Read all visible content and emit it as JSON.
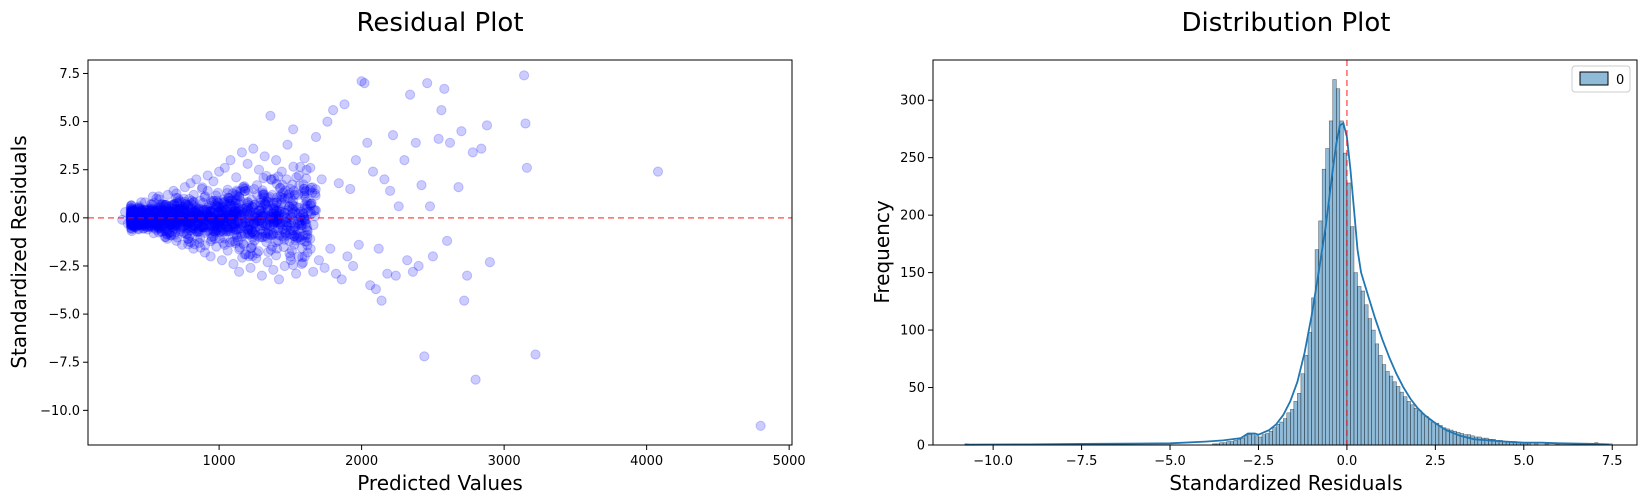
{
  "chart_data": [
    {
      "type": "scatter",
      "title": "Residual Plot",
      "xlabel": "Predicted Values",
      "ylabel": "Standardized Residuals",
      "xlim": [
        80,
        5020
      ],
      "ylim": [
        -11.8,
        8.2
      ],
      "xticks": [
        1000,
        2000,
        3000,
        4000,
        5000
      ],
      "yticks": [
        -10.0,
        -7.5,
        -5.0,
        -2.5,
        0.0,
        2.5,
        5.0,
        7.5
      ],
      "xtick_labels": [
        "1000",
        "2000",
        "3000",
        "4000",
        "5000"
      ],
      "ytick_labels": [
        "−10.0",
        "−7.5",
        "−5.0",
        "−2.5",
        "0.0",
        "2.5",
        "5.0",
        "7.5"
      ],
      "point_color": "#0000ff",
      "point_alpha": 0.2,
      "reference_line": {
        "y": 0,
        "color": "#ff0000",
        "style": "dashed"
      },
      "points": [
        [
          320,
          -0.1
        ],
        [
          340,
          0.3
        ],
        [
          360,
          -0.3
        ],
        [
          380,
          0.5
        ],
        [
          400,
          0.2
        ],
        [
          420,
          -0.4
        ],
        [
          440,
          0.6
        ],
        [
          460,
          -0.2
        ],
        [
          480,
          0.8
        ],
        [
          500,
          -0.6
        ],
        [
          520,
          0.4
        ],
        [
          540,
          -0.8
        ],
        [
          560,
          1.0
        ],
        [
          580,
          -0.5
        ],
        [
          600,
          0.7
        ],
        [
          620,
          -1.0
        ],
        [
          640,
          1.2
        ],
        [
          660,
          -0.9
        ],
        [
          680,
          1.4
        ],
        [
          700,
          -1.2
        ],
        [
          720,
          0.9
        ],
        [
          740,
          -1.4
        ],
        [
          760,
          1.6
        ],
        [
          780,
          -1.1
        ],
        [
          800,
          1.8
        ],
        [
          820,
          -1.6
        ],
        [
          840,
          2.0
        ],
        [
          860,
          -1.3
        ],
        [
          880,
          1.5
        ],
        [
          900,
          -1.8
        ],
        [
          920,
          2.2
        ],
        [
          940,
          -2.0
        ],
        [
          960,
          1.9
        ],
        [
          980,
          -1.5
        ],
        [
          1000,
          2.4
        ],
        [
          1020,
          -2.2
        ],
        [
          1040,
          2.6
        ],
        [
          1060,
          -1.7
        ],
        [
          1080,
          3.0
        ],
        [
          1100,
          -2.4
        ],
        [
          1120,
          2.1
        ],
        [
          1140,
          -2.8
        ],
        [
          1160,
          3.4
        ],
        [
          1180,
          -1.9
        ],
        [
          1200,
          2.8
        ],
        [
          1220,
          -2.6
        ],
        [
          1240,
          3.6
        ],
        [
          1260,
          -2.1
        ],
        [
          1280,
          2.5
        ],
        [
          1300,
          -3.0
        ],
        [
          1320,
          3.2
        ],
        [
          1340,
          -2.3
        ],
        [
          1360,
          5.3
        ],
        [
          1380,
          -2.7
        ],
        [
          1400,
          3.0
        ],
        [
          1420,
          -3.2
        ],
        [
          1440,
          2.4
        ],
        [
          1460,
          -2.5
        ],
        [
          1480,
          3.8
        ],
        [
          1500,
          -2.0
        ],
        [
          1520,
          4.6
        ],
        [
          1540,
          -2.9
        ],
        [
          1560,
          2.2
        ],
        [
          1580,
          -2.4
        ],
        [
          1600,
          3.1
        ],
        [
          1620,
          -1.8
        ],
        [
          1640,
          2.6
        ],
        [
          1660,
          -2.8
        ],
        [
          1680,
          4.2
        ],
        [
          1700,
          -2.2
        ],
        [
          1720,
          2.0
        ],
        [
          1740,
          -2.6
        ],
        [
          1760,
          5.0
        ],
        [
          1780,
          -1.6
        ],
        [
          1800,
          5.6
        ],
        [
          1820,
          -2.9
        ],
        [
          1840,
          1.8
        ],
        [
          1860,
          -3.2
        ],
        [
          1880,
          5.9
        ],
        [
          1900,
          -2.0
        ],
        [
          1920,
          1.5
        ],
        [
          1940,
          -2.5
        ],
        [
          1960,
          3.0
        ],
        [
          1980,
          -1.4
        ],
        [
          2000,
          7.1
        ],
        [
          2020,
          7.0
        ],
        [
          2040,
          3.9
        ],
        [
          2060,
          -3.5
        ],
        [
          2080,
          2.4
        ],
        [
          2100,
          -3.7
        ],
        [
          2120,
          -1.6
        ],
        [
          2140,
          -4.3
        ],
        [
          2160,
          2.0
        ],
        [
          2180,
          -2.9
        ],
        [
          2200,
          1.4
        ],
        [
          2220,
          4.3
        ],
        [
          2240,
          -3.0
        ],
        [
          2260,
          0.6
        ],
        [
          2300,
          3.0
        ],
        [
          2320,
          -2.2
        ],
        [
          2340,
          6.4
        ],
        [
          2360,
          -2.8
        ],
        [
          2380,
          3.9
        ],
        [
          2400,
          -2.5
        ],
        [
          2420,
          1.7
        ],
        [
          2440,
          -7.2
        ],
        [
          2460,
          7.0
        ],
        [
          2480,
          0.6
        ],
        [
          2500,
          -2.0
        ],
        [
          2540,
          4.1
        ],
        [
          2560,
          5.6
        ],
        [
          2580,
          6.7
        ],
        [
          2600,
          -1.2
        ],
        [
          2620,
          3.9
        ],
        [
          2680,
          1.6
        ],
        [
          2700,
          4.5
        ],
        [
          2720,
          -4.3
        ],
        [
          2740,
          -3.0
        ],
        [
          2780,
          3.4
        ],
        [
          2800,
          -8.4
        ],
        [
          2840,
          3.6
        ],
        [
          2880,
          4.8
        ],
        [
          2900,
          -2.3
        ],
        [
          3140,
          7.4
        ],
        [
          3150,
          4.9
        ],
        [
          3160,
          2.6
        ],
        [
          3220,
          -7.1
        ],
        [
          4080,
          2.4
        ],
        [
          4800,
          -10.8
        ]
      ]
    },
    {
      "type": "bar",
      "title": "Distribution Plot",
      "xlabel": "Standardized Residuals",
      "ylabel": "Frequency",
      "xlim": [
        -11.7,
        8.2
      ],
      "ylim": [
        0,
        335
      ],
      "xticks": [
        -10.0,
        -7.5,
        -5.0,
        -2.5,
        0.0,
        2.5,
        5.0,
        7.5
      ],
      "yticks": [
        0,
        50,
        100,
        150,
        200,
        250,
        300
      ],
      "xtick_labels": [
        "−10.0",
        "−7.5",
        "−5.0",
        "−2.5",
        "0.0",
        "2.5",
        "5.0",
        "7.5"
      ],
      "ytick_labels": [
        "0",
        "50",
        "100",
        "150",
        "200",
        "250",
        "300"
      ],
      "legend": {
        "label": "0",
        "position": "top-right"
      },
      "bar_color": "#1f77b4",
      "bar_alpha": 0.5,
      "kde_color": "#1f77b4",
      "reference_line": {
        "x": 0,
        "color": "#ff0000",
        "style": "dashed"
      },
      "bin_start": -3.8,
      "bin_width": 0.1,
      "counts": [
        1,
        1,
        2,
        2,
        3,
        3,
        4,
        5,
        6,
        8,
        9,
        10,
        8,
        7,
        9,
        10,
        12,
        15,
        18,
        20,
        23,
        28,
        31,
        38,
        45,
        62,
        78,
        98,
        128,
        170,
        195,
        240,
        258,
        282,
        318,
        310,
        282,
        254,
        228,
        190,
        150,
        138,
        134,
        122,
        110,
        100,
        88,
        78,
        70,
        64,
        60,
        55,
        51,
        46,
        42,
        38,
        35,
        32,
        30,
        27,
        25,
        22,
        20,
        19,
        17,
        15,
        14,
        13,
        12,
        11,
        10,
        9,
        9,
        8,
        7,
        7,
        6,
        6,
        5,
        5,
        4,
        4,
        3,
        3,
        3,
        3,
        2,
        2,
        2,
        2
      ],
      "outliers": [
        [
          -10.8,
          1
        ],
        [
          -8.4,
          1
        ],
        [
          -7.2,
          1
        ],
        [
          -7.1,
          1
        ],
        [
          5.3,
          2
        ],
        [
          5.6,
          1
        ],
        [
          5.9,
          1
        ],
        [
          6.4,
          1
        ],
        [
          6.7,
          1
        ],
        [
          7.0,
          2
        ],
        [
          7.1,
          1
        ],
        [
          7.4,
          1
        ]
      ],
      "kde": [
        [
          -10.8,
          0.3
        ],
        [
          -9,
          0.5
        ],
        [
          -7.5,
          1
        ],
        [
          -5,
          1.5
        ],
        [
          -4,
          3
        ],
        [
          -3.5,
          4
        ],
        [
          -3,
          6
        ],
        [
          -2.8,
          10
        ],
        [
          -2.6,
          10
        ],
        [
          -2.5,
          9
        ],
        [
          -2.2,
          13
        ],
        [
          -2.0,
          18
        ],
        [
          -1.8,
          26
        ],
        [
          -1.6,
          38
        ],
        [
          -1.4,
          55
        ],
        [
          -1.2,
          80
        ],
        [
          -1.0,
          112
        ],
        [
          -0.8,
          150
        ],
        [
          -0.6,
          190
        ],
        [
          -0.4,
          240
        ],
        [
          -0.3,
          262
        ],
        [
          -0.2,
          278
        ],
        [
          -0.1,
          280
        ],
        [
          0.0,
          268
        ],
        [
          0.1,
          240
        ],
        [
          0.2,
          205
        ],
        [
          0.3,
          170
        ],
        [
          0.4,
          150
        ],
        [
          0.5,
          140
        ],
        [
          0.6,
          130
        ],
        [
          0.8,
          110
        ],
        [
          1.0,
          92
        ],
        [
          1.2,
          76
        ],
        [
          1.4,
          62
        ],
        [
          1.6,
          50
        ],
        [
          1.8,
          40
        ],
        [
          2.0,
          32
        ],
        [
          2.2,
          26
        ],
        [
          2.5,
          19
        ],
        [
          2.8,
          13
        ],
        [
          3.2,
          8
        ],
        [
          3.6,
          5
        ],
        [
          4.0,
          4
        ],
        [
          4.5,
          3
        ],
        [
          5.0,
          2
        ],
        [
          5.5,
          2
        ],
        [
          6.0,
          1.5
        ],
        [
          7.0,
          1
        ],
        [
          7.4,
          0.5
        ]
      ]
    }
  ]
}
